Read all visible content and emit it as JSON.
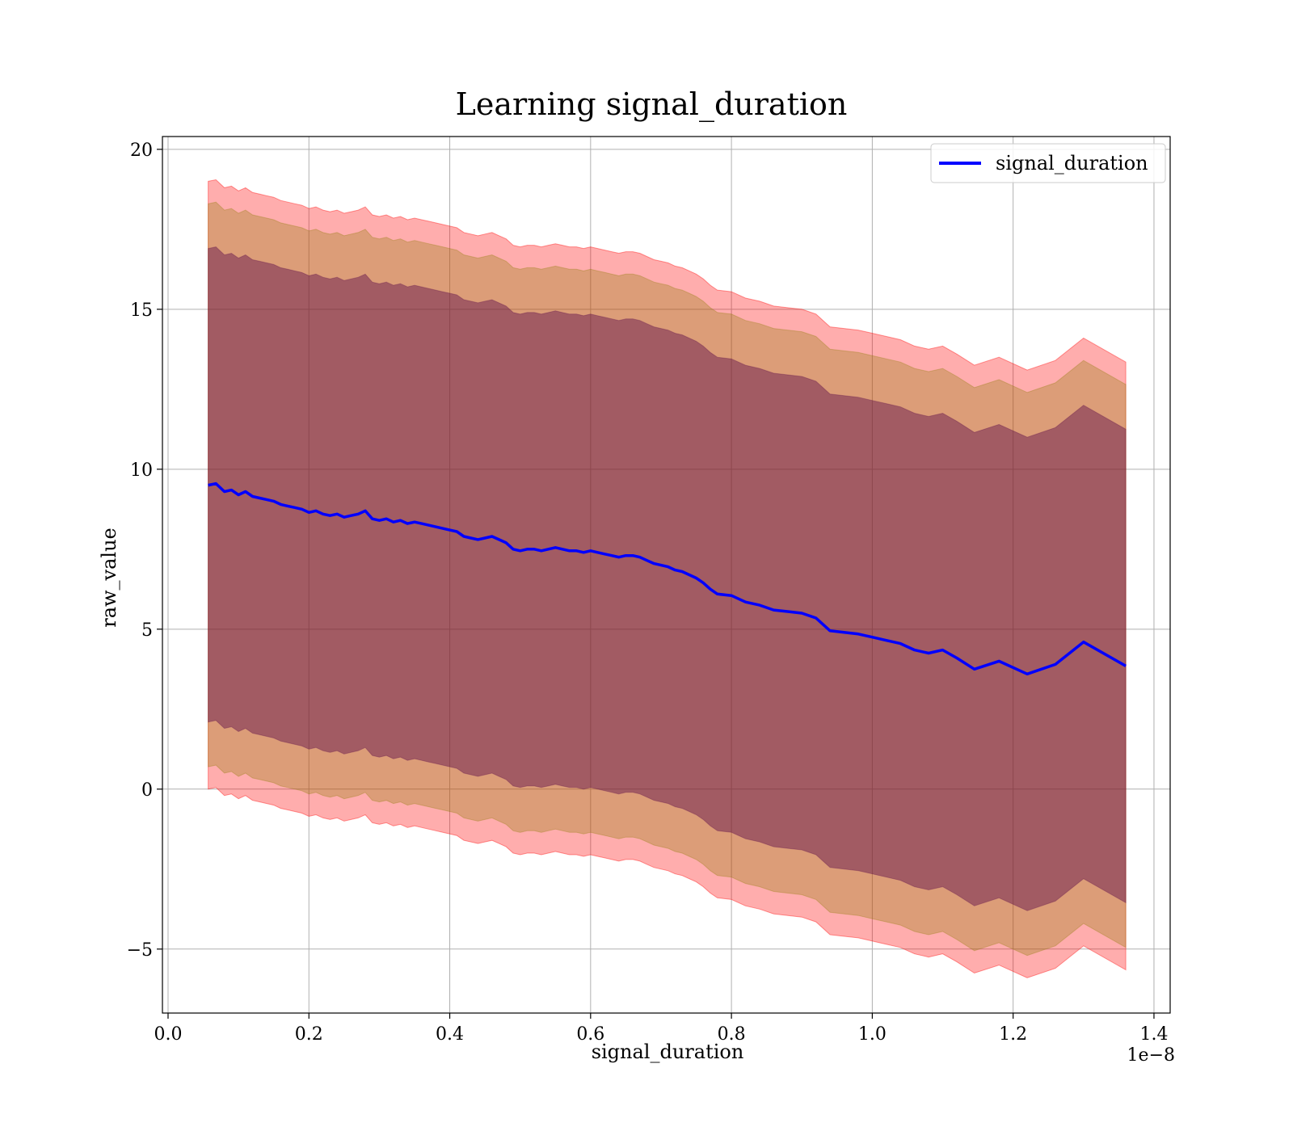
{
  "chart_data": {
    "type": "line",
    "title": "Learning signal_duration",
    "xlabel": "signal_duration",
    "ylabel": "raw_value",
    "x_offset_text": "1e−8",
    "xlim": [
      -0.008,
      1.423
    ],
    "ylim": [
      -7.0,
      20.4
    ],
    "xticks": [
      0.0,
      0.2,
      0.4,
      0.6,
      0.8,
      1.0,
      1.2,
      1.4
    ],
    "xtick_labels": [
      "0.0",
      "0.2",
      "0.4",
      "0.6",
      "0.8",
      "1.0",
      "1.2",
      "1.4"
    ],
    "yticks": [
      -5,
      0,
      5,
      10,
      15,
      20
    ],
    "ytick_labels": [
      "−5",
      "0",
      "5",
      "10",
      "15",
      "20"
    ],
    "grid": true,
    "legend": {
      "position": "top-right",
      "entries": [
        "signal_duration"
      ]
    },
    "colors": {
      "line": "#0000ff",
      "band_outer": "#ff0000",
      "band_middle": "#8b7a00",
      "band_inner": "#5a0a4a"
    },
    "x": [
      0.057,
      0.068,
      0.08,
      0.09,
      0.1,
      0.11,
      0.12,
      0.13,
      0.14,
      0.15,
      0.16,
      0.17,
      0.18,
      0.19,
      0.2,
      0.21,
      0.22,
      0.23,
      0.24,
      0.25,
      0.26,
      0.27,
      0.28,
      0.29,
      0.3,
      0.31,
      0.32,
      0.33,
      0.34,
      0.35,
      0.36,
      0.37,
      0.38,
      0.39,
      0.4,
      0.41,
      0.42,
      0.43,
      0.44,
      0.45,
      0.46,
      0.47,
      0.48,
      0.49,
      0.5,
      0.51,
      0.52,
      0.53,
      0.54,
      0.55,
      0.56,
      0.57,
      0.58,
      0.59,
      0.6,
      0.61,
      0.62,
      0.63,
      0.64,
      0.65,
      0.66,
      0.67,
      0.68,
      0.69,
      0.7,
      0.71,
      0.72,
      0.73,
      0.74,
      0.75,
      0.76,
      0.77,
      0.78,
      0.8,
      0.82,
      0.84,
      0.86,
      0.88,
      0.9,
      0.92,
      0.94,
      0.96,
      0.98,
      1.0,
      1.02,
      1.04,
      1.06,
      1.08,
      1.1,
      1.12,
      1.145,
      1.18,
      1.22,
      1.26,
      1.3,
      1.36
    ],
    "mean": [
      9.5,
      9.55,
      9.3,
      9.35,
      9.2,
      9.3,
      9.15,
      9.1,
      9.05,
      9.0,
      8.9,
      8.85,
      8.8,
      8.75,
      8.65,
      8.7,
      8.6,
      8.55,
      8.6,
      8.5,
      8.55,
      8.6,
      8.7,
      8.45,
      8.4,
      8.45,
      8.35,
      8.4,
      8.3,
      8.35,
      8.3,
      8.25,
      8.2,
      8.15,
      8.1,
      8.05,
      7.9,
      7.85,
      7.8,
      7.85,
      7.9,
      7.8,
      7.7,
      7.5,
      7.45,
      7.5,
      7.5,
      7.45,
      7.5,
      7.55,
      7.5,
      7.45,
      7.45,
      7.4,
      7.45,
      7.4,
      7.35,
      7.3,
      7.25,
      7.3,
      7.3,
      7.25,
      7.15,
      7.05,
      7.0,
      6.95,
      6.85,
      6.8,
      6.7,
      6.6,
      6.45,
      6.25,
      6.1,
      6.05,
      5.85,
      5.75,
      5.6,
      5.55,
      5.5,
      5.35,
      4.95,
      4.9,
      4.85,
      4.75,
      4.65,
      4.55,
      4.35,
      4.25,
      4.35,
      4.1,
      3.75,
      4.0,
      3.6,
      3.9,
      4.6,
      3.85
    ],
    "band_outer_upper": [
      19.0,
      19.05,
      18.8,
      18.85,
      18.7,
      18.8,
      18.65,
      18.6,
      18.55,
      18.5,
      18.4,
      18.35,
      18.3,
      18.25,
      18.15,
      18.2,
      18.1,
      18.05,
      18.1,
      18.0,
      18.05,
      18.1,
      18.2,
      17.95,
      17.9,
      17.95,
      17.85,
      17.9,
      17.8,
      17.85,
      17.8,
      17.75,
      17.7,
      17.65,
      17.6,
      17.55,
      17.4,
      17.35,
      17.3,
      17.35,
      17.4,
      17.3,
      17.2,
      17.0,
      16.95,
      17.0,
      17.0,
      16.95,
      17.0,
      17.05,
      17.0,
      16.95,
      16.95,
      16.9,
      16.95,
      16.9,
      16.85,
      16.8,
      16.75,
      16.8,
      16.8,
      16.75,
      16.65,
      16.55,
      16.5,
      16.45,
      16.35,
      16.3,
      16.2,
      16.1,
      15.95,
      15.75,
      15.6,
      15.55,
      15.35,
      15.25,
      15.1,
      15.05,
      15.0,
      14.85,
      14.45,
      14.4,
      14.35,
      14.25,
      14.15,
      14.05,
      13.85,
      13.75,
      13.85,
      13.6,
      13.25,
      13.5,
      13.1,
      13.4,
      14.1,
      13.35
    ],
    "band_outer_lower": [
      0.0,
      0.05,
      -0.2,
      -0.15,
      -0.3,
      -0.2,
      -0.35,
      -0.4,
      -0.45,
      -0.5,
      -0.6,
      -0.65,
      -0.7,
      -0.75,
      -0.85,
      -0.8,
      -0.9,
      -0.95,
      -0.9,
      -1.0,
      -0.95,
      -0.9,
      -0.8,
      -1.05,
      -1.1,
      -1.05,
      -1.15,
      -1.1,
      -1.2,
      -1.15,
      -1.2,
      -1.25,
      -1.3,
      -1.35,
      -1.4,
      -1.45,
      -1.6,
      -1.65,
      -1.7,
      -1.65,
      -1.6,
      -1.7,
      -1.8,
      -2.0,
      -2.05,
      -2.0,
      -2.0,
      -2.05,
      -2.0,
      -1.95,
      -2.0,
      -2.05,
      -2.05,
      -2.1,
      -2.05,
      -2.1,
      -2.15,
      -2.2,
      -2.25,
      -2.2,
      -2.2,
      -2.25,
      -2.35,
      -2.45,
      -2.5,
      -2.55,
      -2.65,
      -2.7,
      -2.8,
      -2.9,
      -3.05,
      -3.25,
      -3.4,
      -3.45,
      -3.65,
      -3.75,
      -3.9,
      -3.95,
      -4.0,
      -4.15,
      -4.55,
      -4.6,
      -4.65,
      -4.75,
      -4.85,
      -4.95,
      -5.15,
      -5.25,
      -5.15,
      -5.4,
      -5.75,
      -5.5,
      -5.9,
      -5.6,
      -4.9,
      -5.65
    ],
    "band_middle_upper": [
      18.3,
      18.35,
      18.1,
      18.15,
      18.0,
      18.1,
      17.95,
      17.9,
      17.85,
      17.8,
      17.7,
      17.65,
      17.6,
      17.55,
      17.45,
      17.5,
      17.4,
      17.35,
      17.4,
      17.3,
      17.35,
      17.4,
      17.5,
      17.25,
      17.2,
      17.25,
      17.15,
      17.2,
      17.1,
      17.15,
      17.1,
      17.05,
      17.0,
      16.95,
      16.9,
      16.85,
      16.7,
      16.65,
      16.6,
      16.65,
      16.7,
      16.6,
      16.5,
      16.3,
      16.25,
      16.3,
      16.3,
      16.25,
      16.3,
      16.35,
      16.3,
      16.25,
      16.25,
      16.2,
      16.25,
      16.2,
      16.15,
      16.1,
      16.05,
      16.1,
      16.1,
      16.05,
      15.95,
      15.85,
      15.8,
      15.75,
      15.65,
      15.6,
      15.5,
      15.4,
      15.25,
      15.05,
      14.9,
      14.85,
      14.65,
      14.55,
      14.4,
      14.35,
      14.3,
      14.15,
      13.75,
      13.7,
      13.65,
      13.55,
      13.45,
      13.35,
      13.15,
      13.05,
      13.15,
      12.9,
      12.55,
      12.8,
      12.4,
      12.7,
      13.4,
      12.65
    ],
    "band_middle_lower": [
      0.7,
      0.75,
      0.5,
      0.55,
      0.4,
      0.5,
      0.35,
      0.3,
      0.25,
      0.2,
      0.1,
      0.05,
      0.0,
      -0.05,
      -0.15,
      -0.1,
      -0.2,
      -0.25,
      -0.2,
      -0.3,
      -0.25,
      -0.2,
      -0.1,
      -0.35,
      -0.4,
      -0.35,
      -0.45,
      -0.4,
      -0.5,
      -0.45,
      -0.5,
      -0.55,
      -0.6,
      -0.65,
      -0.7,
      -0.75,
      -0.9,
      -0.95,
      -1.0,
      -0.95,
      -0.9,
      -1.0,
      -1.1,
      -1.3,
      -1.35,
      -1.3,
      -1.3,
      -1.35,
      -1.3,
      -1.25,
      -1.3,
      -1.35,
      -1.35,
      -1.4,
      -1.35,
      -1.4,
      -1.45,
      -1.5,
      -1.55,
      -1.5,
      -1.5,
      -1.55,
      -1.65,
      -1.75,
      -1.8,
      -1.85,
      -1.95,
      -2.0,
      -2.1,
      -2.2,
      -2.35,
      -2.55,
      -2.7,
      -2.75,
      -2.95,
      -3.05,
      -3.2,
      -3.25,
      -3.3,
      -3.45,
      -3.85,
      -3.9,
      -3.95,
      -4.05,
      -4.15,
      -4.25,
      -4.45,
      -4.55,
      -4.45,
      -4.7,
      -5.05,
      -4.8,
      -5.2,
      -4.9,
      -4.2,
      -4.95
    ],
    "band_inner_upper": [
      16.9,
      16.95,
      16.7,
      16.75,
      16.6,
      16.7,
      16.55,
      16.5,
      16.45,
      16.4,
      16.3,
      16.25,
      16.2,
      16.15,
      16.05,
      16.1,
      16.0,
      15.95,
      16.0,
      15.9,
      15.95,
      16.0,
      16.1,
      15.85,
      15.8,
      15.85,
      15.75,
      15.8,
      15.7,
      15.75,
      15.7,
      15.65,
      15.6,
      15.55,
      15.5,
      15.45,
      15.3,
      15.25,
      15.2,
      15.25,
      15.3,
      15.2,
      15.1,
      14.9,
      14.85,
      14.9,
      14.9,
      14.85,
      14.9,
      14.95,
      14.9,
      14.85,
      14.85,
      14.8,
      14.85,
      14.8,
      14.75,
      14.7,
      14.65,
      14.7,
      14.7,
      14.65,
      14.55,
      14.45,
      14.4,
      14.35,
      14.25,
      14.2,
      14.1,
      14.0,
      13.85,
      13.65,
      13.5,
      13.45,
      13.25,
      13.15,
      13.0,
      12.95,
      12.9,
      12.75,
      12.35,
      12.3,
      12.25,
      12.15,
      12.05,
      11.95,
      11.75,
      11.65,
      11.75,
      11.5,
      11.15,
      11.4,
      11.0,
      11.3,
      12.0,
      11.25
    ],
    "band_inner_lower": [
      2.1,
      2.15,
      1.9,
      1.95,
      1.8,
      1.9,
      1.75,
      1.7,
      1.65,
      1.6,
      1.5,
      1.45,
      1.4,
      1.35,
      1.25,
      1.3,
      1.2,
      1.15,
      1.2,
      1.1,
      1.15,
      1.2,
      1.3,
      1.05,
      1.0,
      1.05,
      0.95,
      1.0,
      0.9,
      0.95,
      0.9,
      0.85,
      0.8,
      0.75,
      0.7,
      0.65,
      0.5,
      0.45,
      0.4,
      0.45,
      0.5,
      0.4,
      0.3,
      0.1,
      0.05,
      0.1,
      0.1,
      0.05,
      0.1,
      0.15,
      0.1,
      0.05,
      0.05,
      0.0,
      0.05,
      0.0,
      -0.05,
      -0.1,
      -0.15,
      -0.1,
      -0.1,
      -0.15,
      -0.25,
      -0.35,
      -0.4,
      -0.45,
      -0.55,
      -0.6,
      -0.7,
      -0.8,
      -0.95,
      -1.15,
      -1.3,
      -1.35,
      -1.55,
      -1.65,
      -1.8,
      -1.85,
      -1.9,
      -2.05,
      -2.45,
      -2.5,
      -2.55,
      -2.65,
      -2.75,
      -2.85,
      -3.05,
      -3.15,
      -3.05,
      -3.3,
      -3.65,
      -3.4,
      -3.8,
      -3.5,
      -2.8,
      -3.55
    ]
  }
}
